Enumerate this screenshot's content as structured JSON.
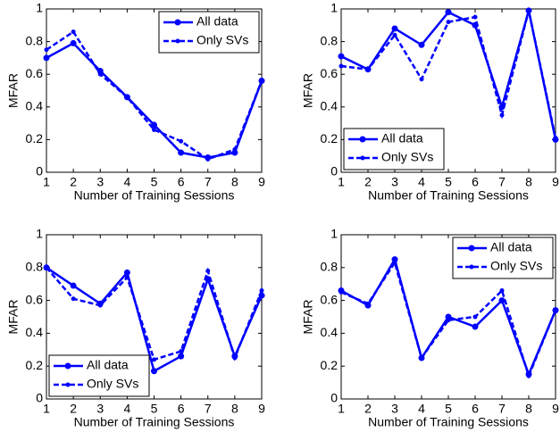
{
  "chart_data": [
    {
      "type": "line",
      "xlabel": "Number of Training Sessions",
      "ylabel": "MFAR",
      "x": [
        1,
        2,
        3,
        4,
        5,
        6,
        7,
        8,
        9
      ],
      "xlim": [
        1,
        9
      ],
      "ylim": [
        0,
        1
      ],
      "xticks": [
        1,
        2,
        3,
        4,
        5,
        6,
        7,
        8,
        9
      ],
      "yticks": [
        0,
        0.2,
        0.4,
        0.6,
        0.8,
        1
      ],
      "legend": "upper right",
      "series": [
        {
          "name": "All data",
          "color": "#0000ff",
          "line_style": "solid",
          "values": [
            0.7,
            0.79,
            0.62,
            0.46,
            0.29,
            0.12,
            0.09,
            0.12,
            0.56
          ]
        },
        {
          "name": "Only SVs",
          "color": "#0000ff",
          "line_style": "dashed",
          "values": [
            0.75,
            0.86,
            0.6,
            0.46,
            0.26,
            0.19,
            0.08,
            0.14,
            0.56
          ]
        }
      ]
    },
    {
      "type": "line",
      "xlabel": "Number of Training Sessions",
      "ylabel": "MFAR",
      "x": [
        1,
        2,
        3,
        4,
        5,
        6,
        7,
        8,
        9
      ],
      "xlim": [
        1,
        9
      ],
      "ylim": [
        0,
        1
      ],
      "xticks": [
        1,
        2,
        3,
        4,
        5,
        6,
        7,
        8,
        9
      ],
      "yticks": [
        0,
        0.2,
        0.4,
        0.6,
        0.8,
        1
      ],
      "legend": "lower left",
      "series": [
        {
          "name": "All data",
          "color": "#0000ff",
          "line_style": "solid",
          "values": [
            0.71,
            0.63,
            0.88,
            0.78,
            0.98,
            0.9,
            0.4,
            0.99,
            0.2
          ]
        },
        {
          "name": "Only SVs",
          "color": "#0000ff",
          "line_style": "dashed",
          "values": [
            0.65,
            0.63,
            0.84,
            0.57,
            0.92,
            0.95,
            0.35,
            0.99,
            0.21
          ]
        }
      ]
    },
    {
      "type": "line",
      "xlabel": "Number of Training Sessions",
      "ylabel": "MFAR",
      "x": [
        1,
        2,
        3,
        4,
        5,
        6,
        7,
        8,
        9
      ],
      "xlim": [
        1,
        9
      ],
      "ylim": [
        0,
        1
      ],
      "xticks": [
        1,
        2,
        3,
        4,
        5,
        6,
        7,
        8,
        9
      ],
      "yticks": [
        0,
        0.2,
        0.4,
        0.6,
        0.8,
        1
      ],
      "legend": "lower left",
      "series": [
        {
          "name": "All data",
          "color": "#0000ff",
          "line_style": "solid",
          "values": [
            0.8,
            0.69,
            0.58,
            0.77,
            0.17,
            0.26,
            0.73,
            0.26,
            0.63
          ]
        },
        {
          "name": "Only SVs",
          "color": "#0000ff",
          "line_style": "dashed",
          "values": [
            0.8,
            0.61,
            0.57,
            0.74,
            0.24,
            0.29,
            0.78,
            0.25,
            0.66
          ]
        }
      ]
    },
    {
      "type": "line",
      "xlabel": "Number of Training Sessions",
      "ylabel": "MFAR",
      "x": [
        1,
        2,
        3,
        4,
        5,
        6,
        7,
        8,
        9
      ],
      "xlim": [
        1,
        9
      ],
      "ylim": [
        0,
        1
      ],
      "xticks": [
        1,
        2,
        3,
        4,
        5,
        6,
        7,
        8,
        9
      ],
      "yticks": [
        0,
        0.2,
        0.4,
        0.6,
        0.8,
        1
      ],
      "legend": "upper right",
      "series": [
        {
          "name": "All data",
          "color": "#0000ff",
          "line_style": "solid",
          "values": [
            0.66,
            0.57,
            0.85,
            0.25,
            0.5,
            0.44,
            0.6,
            0.15,
            0.54
          ]
        },
        {
          "name": "Only SVs",
          "color": "#0000ff",
          "line_style": "dashed",
          "values": [
            0.65,
            0.58,
            0.83,
            0.25,
            0.48,
            0.5,
            0.66,
            0.14,
            0.54
          ]
        }
      ]
    }
  ]
}
